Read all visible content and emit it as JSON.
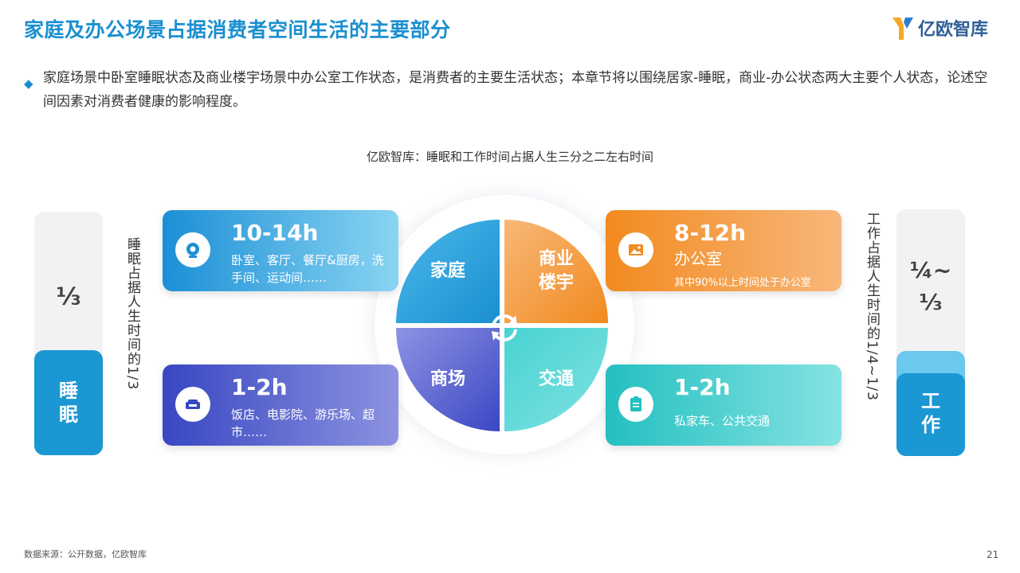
{
  "header": {
    "title": "家庭及办公场景占据消费者空间生活的主要部分",
    "logo_text": "亿欧智库",
    "logo_color": "#f5a623"
  },
  "intro": {
    "text": "家庭场景中卧室睡眠状态及商业楼宇场景中办公室工作状态，是消费者的主要生活状态；本章节将以围绕居家-睡眠，商业-办公状态两大主要个人状态，论述空间因素对消费者健康的影响程度。"
  },
  "diagram": {
    "subtitle": "亿欧智库：睡眠和工作时间占据人生三分之二左右时间",
    "left_bar": {
      "fraction": "⅓",
      "label_line1": "睡",
      "label_line2": "眠",
      "side_text": "睡眠占据人生时间的1/3"
    },
    "right_bar": {
      "fraction_line1": "¼~",
      "fraction_line2": "⅓",
      "label_line1": "工",
      "label_line2": "作",
      "side_text": "工作占据人生时间的1/4~1/3"
    },
    "cards": {
      "home": {
        "hours": "10-14h",
        "desc": "卧室、客厅、餐厅&厨房，洗手间、运动间……",
        "icon": "camera-icon"
      },
      "office": {
        "hours": "8-12h",
        "desc": "办公室",
        "note": "其中90%以上时间处于办公室",
        "icon": "image-icon"
      },
      "mall": {
        "hours": "1-2h",
        "desc": "饭店、电影院、游乐场、超市……",
        "icon": "sofa-icon"
      },
      "traffic": {
        "hours": "1-2h",
        "desc": "私家车、公共交通",
        "icon": "clipboard-icon"
      }
    },
    "quadrants": {
      "home": "家庭",
      "biz_line1": "商业",
      "biz_line2": "楼宇",
      "mall": "商场",
      "traffic": "交通"
    }
  },
  "footer": {
    "source": "数据来源：公开数据，亿欧智库",
    "page": "21"
  }
}
